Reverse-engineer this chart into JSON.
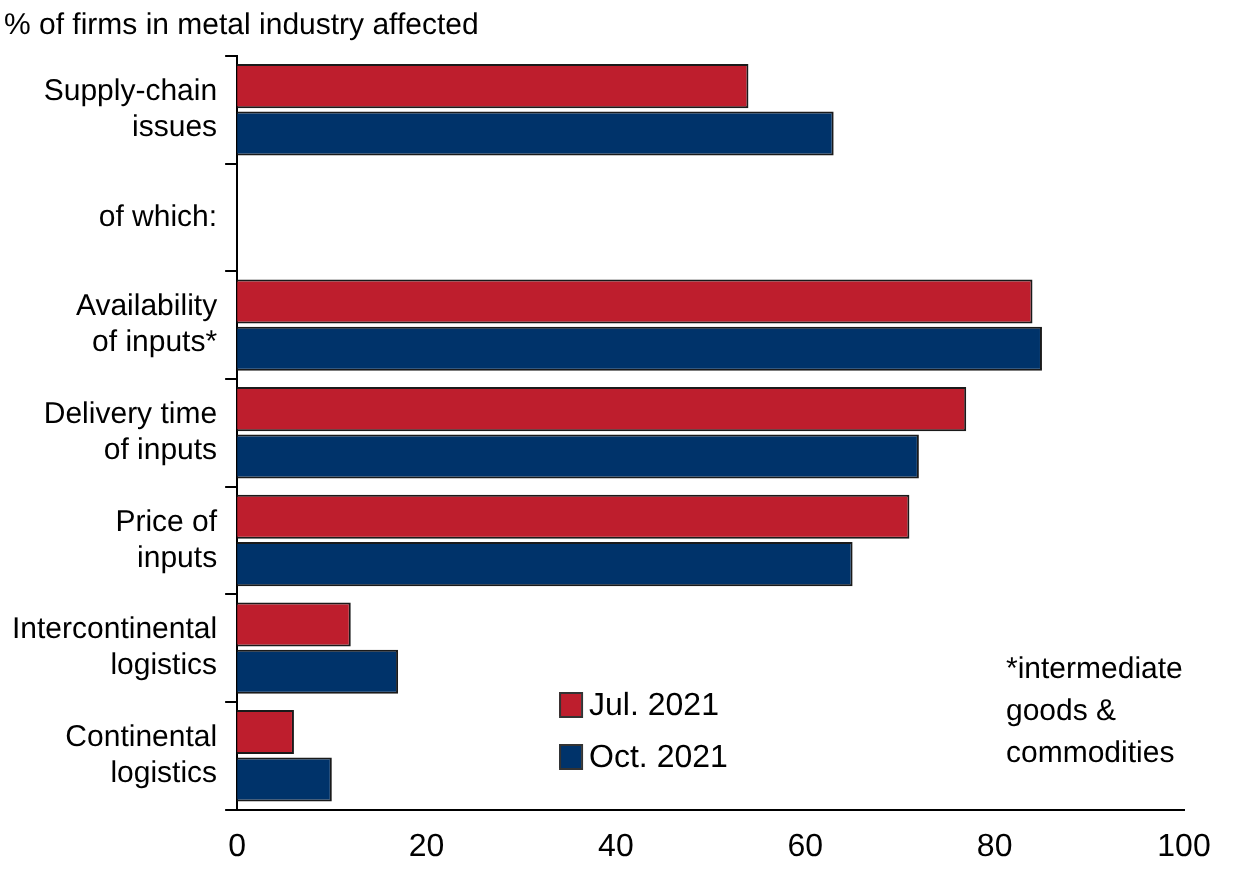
{
  "chart_data": {
    "type": "bar",
    "orientation": "horizontal",
    "title": "% of firms in metal industry affected",
    "categories": [
      "Supply-chain\nissues",
      null,
      "Availability\nof inputs*",
      "Delivery time\nof inputs",
      "Price of\ninputs",
      "Intercontinental\nlogistics",
      "Continental\nlogistics"
    ],
    "series": [
      {
        "name": "Jul. 2021",
        "color": "#be1e2d",
        "values": [
          54,
          null,
          84,
          77,
          71,
          12,
          6
        ]
      },
      {
        "name": "Oct. 2021",
        "color": "#00336a",
        "values": [
          63,
          null,
          85,
          72,
          65,
          17,
          10
        ]
      }
    ],
    "xlim": [
      0,
      100
    ],
    "xticks": [
      0,
      20,
      40,
      60,
      80,
      100
    ],
    "grid": false,
    "legend": "bottom",
    "annotations": [
      "of which:",
      "*intermediate\ngoods &\ncommodities"
    ]
  }
}
